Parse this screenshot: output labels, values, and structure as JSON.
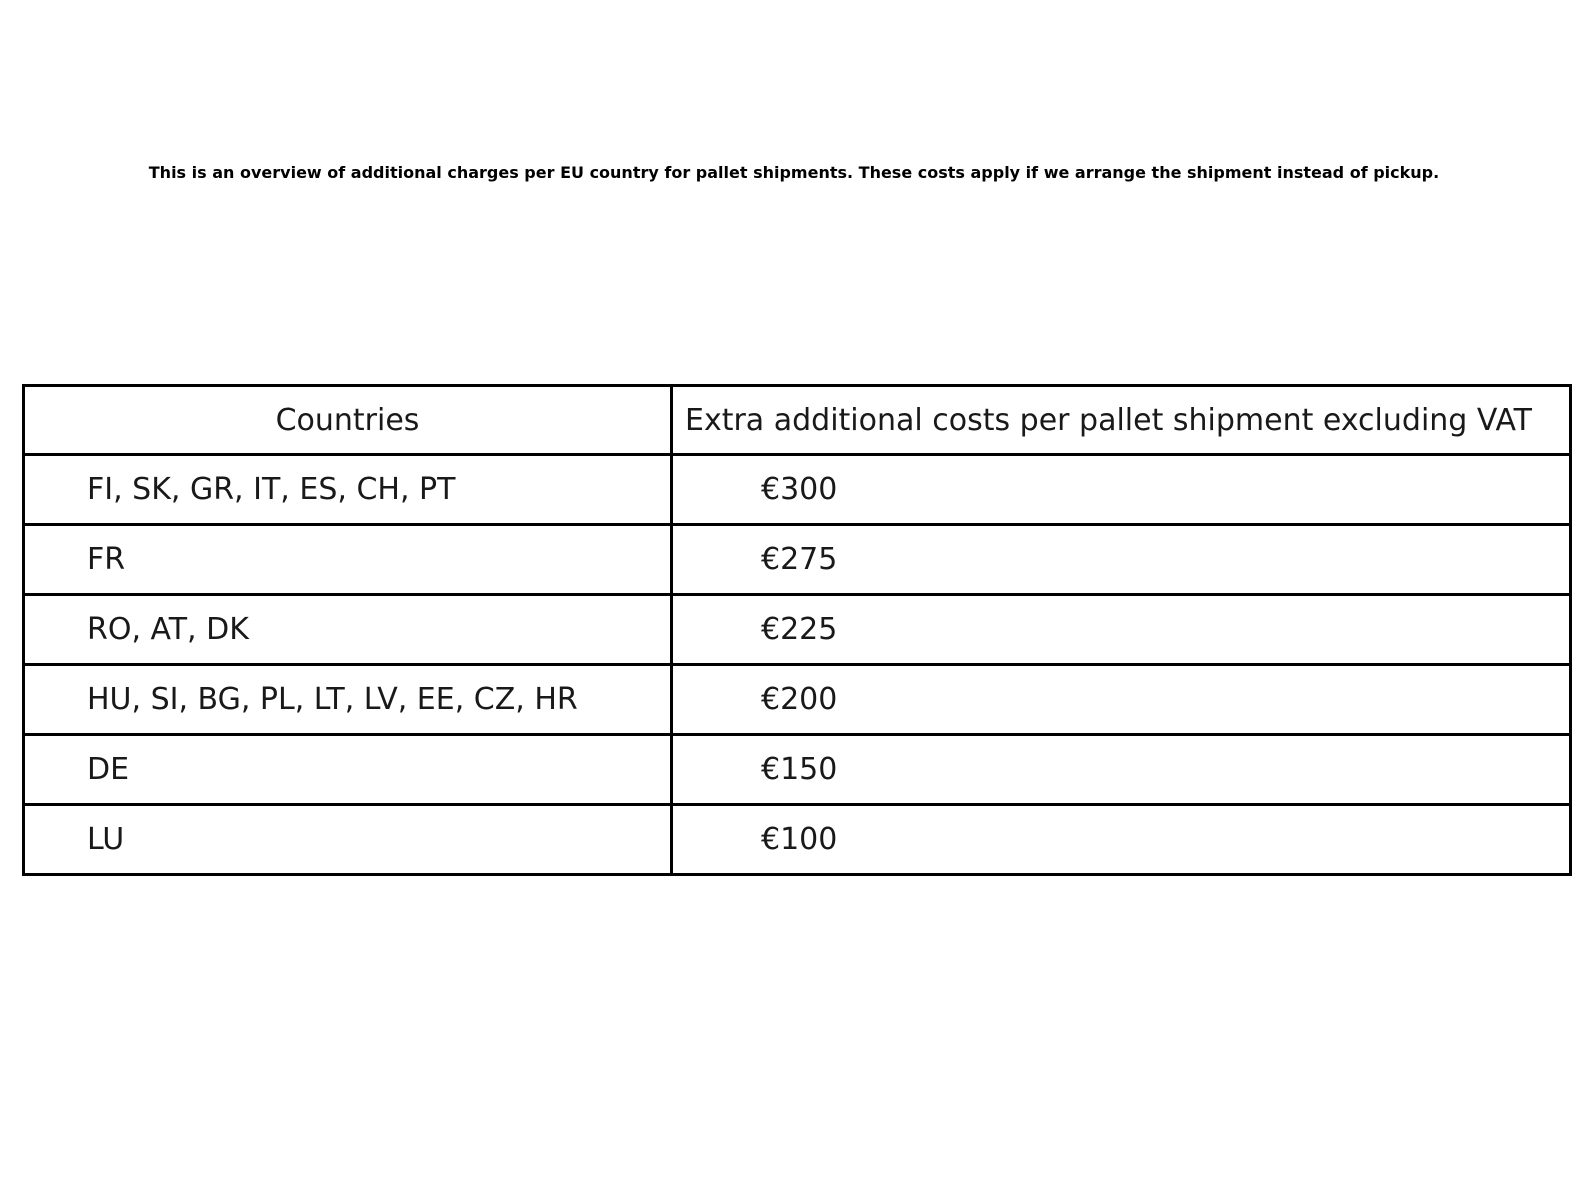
{
  "page": {
    "background_color": "#ffffff"
  },
  "intro": {
    "text": "This is an overview of additional charges per EU country for pallet shipments. These costs apply if we arrange the shipment instead of pickup."
  },
  "table": {
    "border_color": "#000000",
    "text_color": "#191919",
    "headers": [
      "Countries",
      "Extra additional costs per pallet shipment excluding VAT"
    ],
    "rows": [
      {
        "countries": "FI, SK, GR, IT, ES, CH, PT",
        "cost": "€300"
      },
      {
        "countries": "FR",
        "cost": "€275"
      },
      {
        "countries": "RO, AT, DK",
        "cost": "€225"
      },
      {
        "countries": "HU, SI, BG, PL, LT, LV, EE, CZ, HR",
        "cost": "€200"
      },
      {
        "countries": "DE",
        "cost": "€150"
      },
      {
        "countries": "LU",
        "cost": "€100"
      }
    ]
  }
}
